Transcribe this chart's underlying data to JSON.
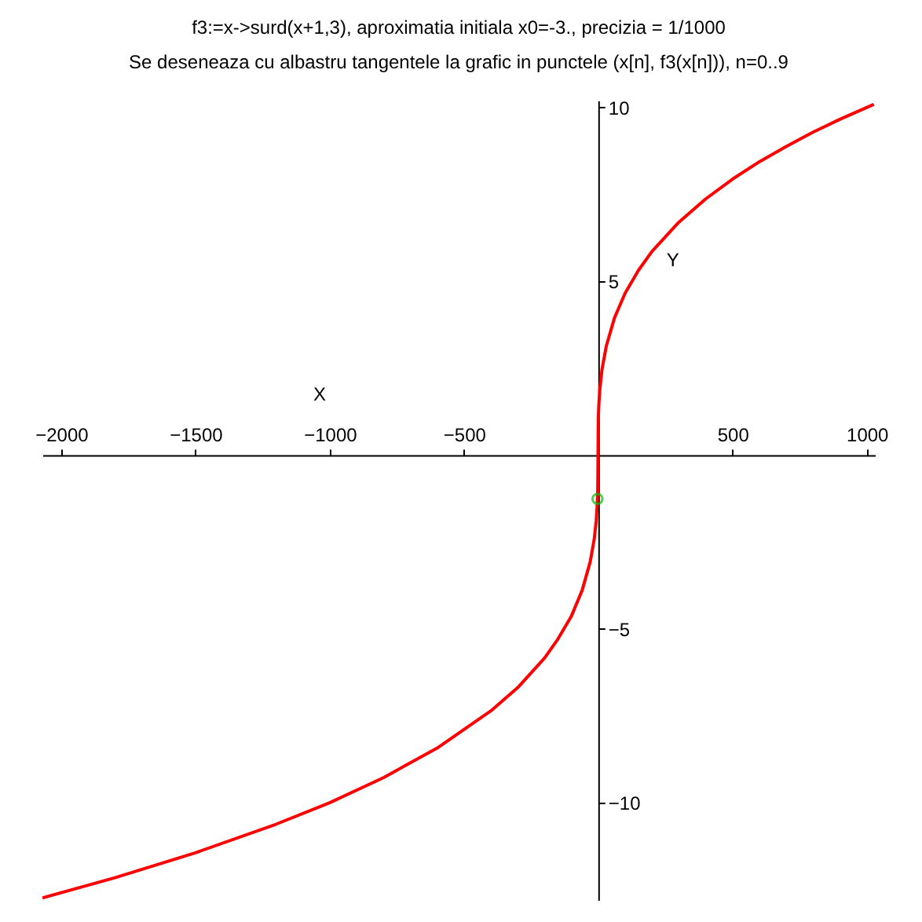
{
  "chart_data": {
    "type": "line",
    "title": "f3:=x->surd(x+1,3), aproximatia initiala x0=-3.,  precizia = 1/1000",
    "subtitle": "Se deseneaza cu albastru tangentele la grafic in punctele (x[n], f3(x[n])), n=0..9",
    "xlabel": "X",
    "ylabel": "Y",
    "xlim": [
      -2070,
      1030
    ],
    "ylim": [
      -12.8,
      10.2
    ],
    "xticks": [
      -2000,
      -1500,
      -1000,
      -500,
      500,
      1000
    ],
    "yticks": [
      -10,
      -5,
      5,
      10
    ],
    "grid": false,
    "series": [
      {
        "color": "#ff0000",
        "marker": "none",
        "x": [
          -2070,
          -1800,
          -1500,
          -1200,
          -1000,
          -800,
          -600,
          -400,
          -300,
          -200,
          -150,
          -100,
          -60,
          -30,
          -15,
          -8,
          -4,
          -2,
          -1,
          0,
          2,
          6,
          14,
          30,
          60,
          100,
          150,
          200,
          300,
          400,
          500,
          600,
          700,
          800,
          900,
          1026
        ],
        "values": [
          -12.74,
          -12.16,
          -11.44,
          -10.62,
          -10.0,
          -9.28,
          -8.43,
          -7.36,
          -6.69,
          -5.84,
          -5.29,
          -4.63,
          -3.89,
          -3.07,
          -2.41,
          -1.91,
          -1.44,
          -1,
          0,
          1,
          1.44,
          1.91,
          2.47,
          3.14,
          3.94,
          4.66,
          5.32,
          5.86,
          6.7,
          7.37,
          7.94,
          8.44,
          8.88,
          9.29,
          9.66,
          10.09
        ]
      },
      {
        "type": "scatter",
        "color": "#00c000",
        "marker": "circle",
        "x": [
          -3
        ],
        "values": [
          -1.26
        ]
      }
    ]
  }
}
